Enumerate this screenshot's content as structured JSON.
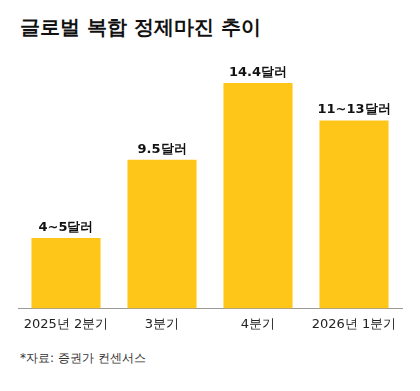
{
  "chart_data": {
    "type": "bar",
    "title": "글로벌 복합 정제마진 추이",
    "source": "*자료: 증권가 컨센서스",
    "categories": [
      "2025년 2분기",
      "3분기",
      "4분기",
      "2026년 1분기"
    ],
    "values": [
      4.5,
      9.5,
      14.4,
      12
    ],
    "value_labels": [
      "4~5달러",
      "9.5달러",
      "14.4달러",
      "11~13달러"
    ],
    "color": "#ffc61a",
    "ylim": [
      0,
      16
    ],
    "grid": false,
    "data_labels": true,
    "tick_labels": "x"
  }
}
